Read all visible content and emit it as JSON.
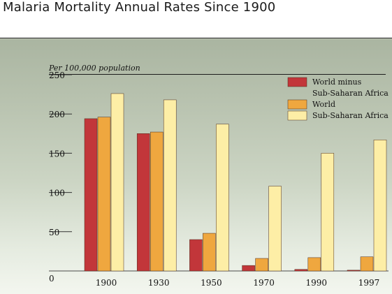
{
  "header": {
    "title": "Malaria Mortality Annual Rates Since 1900",
    "units_label": "Per 100,000 population"
  },
  "chart_data": {
    "type": "bar",
    "title": "Malaria Mortality Annual Rates Since 1900",
    "ylabel": "Per 100,000 population",
    "xlabel": "",
    "categories": [
      "1900",
      "1930",
      "1950",
      "1970",
      "1990",
      "1997"
    ],
    "ylim": [
      0,
      250
    ],
    "yticks": [
      "0",
      "50",
      "100",
      "150",
      "200",
      "250"
    ],
    "grid": false,
    "legend_position": "top-right",
    "series": [
      {
        "name": "World minus\nSub-Saharan Africa",
        "color": "#c2363a",
        "values": [
          194,
          175,
          40,
          7,
          2,
          1
        ]
      },
      {
        "name": "World",
        "color": "#efa73f",
        "values": [
          196,
          177,
          48,
          16,
          17,
          18
        ]
      },
      {
        "name": "Sub-Saharan Africa",
        "color": "#fdeea6",
        "values": [
          226,
          218,
          187,
          108,
          150,
          167
        ]
      }
    ]
  }
}
